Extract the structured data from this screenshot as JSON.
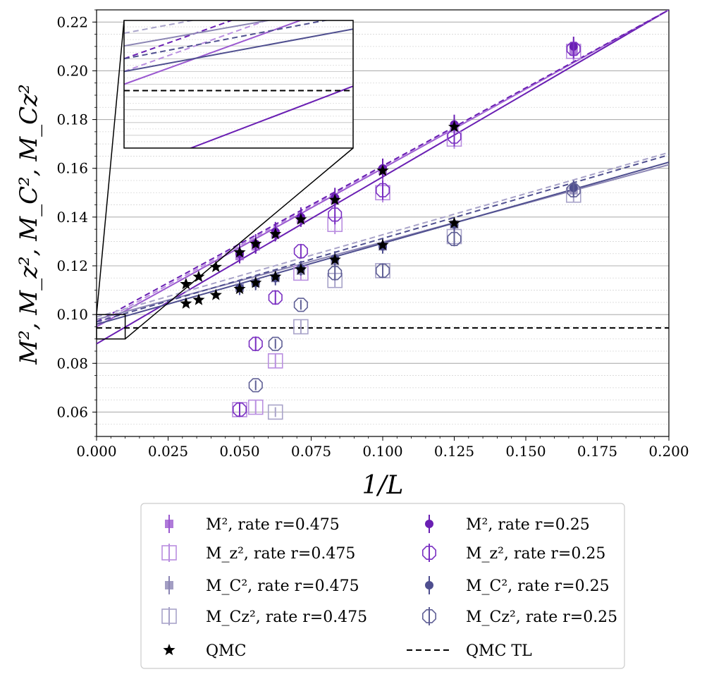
{
  "chart_data": {
    "type": "scatter",
    "xlabel": "1/L",
    "ylabel": "M², M_z², M_C², M_Cz²",
    "xlim": [
      0.0,
      0.2
    ],
    "ylim": [
      0.05,
      0.225
    ],
    "xticks": [
      "0.000",
      "0.025",
      "0.050",
      "0.075",
      "0.100",
      "0.125",
      "0.150",
      "0.175",
      "0.200"
    ],
    "yticks": [
      "0.06",
      "0.08",
      "0.10",
      "0.12",
      "0.14",
      "0.16",
      "0.18",
      "0.20",
      "0.22"
    ],
    "grid": "horizontal",
    "colors": {
      "m2_r475": "#9b59d0",
      "mz_r475": "#b98ee0",
      "mc_r475": "#8c86b4",
      "mcz_r475": "#a8a3c9",
      "m2_r25": "#6a1fb3",
      "mz_r25": "#7a2fc2",
      "mc_r25": "#4f4f8f",
      "mcz_r25": "#5f5f95",
      "qmc": "#000000"
    },
    "series": [
      {
        "key": "m2_r475",
        "name": "M², rate r=0.475",
        "marker": "filled-square",
        "points": [
          {
            "x": 0.05,
            "y": 0.124,
            "err": 0.003
          },
          {
            "x": 0.0556,
            "y": 0.128,
            "err": 0.003
          },
          {
            "x": 0.0625,
            "y": 0.133,
            "err": 0.003
          },
          {
            "x": 0.0714,
            "y": 0.139,
            "err": 0.003
          },
          {
            "x": 0.0833,
            "y": 0.147,
            "err": 0.003
          },
          {
            "x": 0.1,
            "y": 0.159,
            "err": 0.004
          },
          {
            "x": 0.125,
            "y": 0.177,
            "err": 0.004
          },
          {
            "x": 0.1667,
            "y": 0.208,
            "err": 0.004
          }
        ]
      },
      {
        "key": "mz_r475",
        "name": "M_z², rate r=0.475",
        "marker": "open-square",
        "points": [
          {
            "x": 0.05,
            "y": 0.061,
            "err": 0.003
          },
          {
            "x": 0.0556,
            "y": 0.062,
            "err": 0.003
          },
          {
            "x": 0.0625,
            "y": 0.081,
            "err": 0.003
          },
          {
            "x": 0.0714,
            "y": 0.117,
            "err": 0.003
          },
          {
            "x": 0.0833,
            "y": 0.137,
            "err": 0.004
          },
          {
            "x": 0.1,
            "y": 0.15,
            "err": 0.004
          },
          {
            "x": 0.125,
            "y": 0.172,
            "err": 0.004
          },
          {
            "x": 0.1667,
            "y": 0.208,
            "err": 0.004
          }
        ]
      },
      {
        "key": "mc_r475",
        "name": "M_C², rate r=0.475",
        "marker": "filled-square",
        "points": [
          {
            "x": 0.05,
            "y": 0.111,
            "err": 0.002
          },
          {
            "x": 0.0556,
            "y": 0.113,
            "err": 0.002
          },
          {
            "x": 0.0625,
            "y": 0.115,
            "err": 0.002
          },
          {
            "x": 0.0714,
            "y": 0.118,
            "err": 0.002
          },
          {
            "x": 0.0833,
            "y": 0.122,
            "err": 0.002
          },
          {
            "x": 0.1,
            "y": 0.128,
            "err": 0.002
          },
          {
            "x": 0.125,
            "y": 0.137,
            "err": 0.002
          },
          {
            "x": 0.1667,
            "y": 0.151,
            "err": 0.003
          }
        ]
      },
      {
        "key": "mcz_r475",
        "name": "M_Cz², rate r=0.475",
        "marker": "open-square",
        "points": [
          {
            "x": 0.0625,
            "y": 0.06,
            "err": 0.002
          },
          {
            "x": 0.0714,
            "y": 0.095,
            "err": 0.003
          },
          {
            "x": 0.0833,
            "y": 0.114,
            "err": 0.003
          },
          {
            "x": 0.1,
            "y": 0.118,
            "err": 0.003
          },
          {
            "x": 0.125,
            "y": 0.132,
            "err": 0.003
          },
          {
            "x": 0.1667,
            "y": 0.149,
            "err": 0.003
          }
        ]
      },
      {
        "key": "m2_r25",
        "name": "M², rate r=0.25",
        "marker": "filled-circle",
        "points": [
          {
            "x": 0.05,
            "y": 0.125,
            "err": 0.004
          },
          {
            "x": 0.0556,
            "y": 0.129,
            "err": 0.004
          },
          {
            "x": 0.0625,
            "y": 0.134,
            "err": 0.004
          },
          {
            "x": 0.0714,
            "y": 0.14,
            "err": 0.004
          },
          {
            "x": 0.0833,
            "y": 0.148,
            "err": 0.004
          },
          {
            "x": 0.1,
            "y": 0.16,
            "err": 0.004
          },
          {
            "x": 0.125,
            "y": 0.178,
            "err": 0.004
          },
          {
            "x": 0.1667,
            "y": 0.21,
            "err": 0.004
          }
        ]
      },
      {
        "key": "mz_r25",
        "name": "M_z², rate r=0.25",
        "marker": "open-octagon",
        "points": [
          {
            "x": 0.05,
            "y": 0.061,
            "err": 0.003
          },
          {
            "x": 0.0556,
            "y": 0.088,
            "err": 0.003
          },
          {
            "x": 0.0625,
            "y": 0.107,
            "err": 0.003
          },
          {
            "x": 0.0714,
            "y": 0.126,
            "err": 0.003
          },
          {
            "x": 0.0833,
            "y": 0.141,
            "err": 0.004
          },
          {
            "x": 0.1,
            "y": 0.151,
            "err": 0.004
          },
          {
            "x": 0.125,
            "y": 0.173,
            "err": 0.004
          },
          {
            "x": 0.1667,
            "y": 0.209,
            "err": 0.004
          }
        ]
      },
      {
        "key": "mc_r25",
        "name": "M_C², rate r=0.25",
        "marker": "filled-circle",
        "points": [
          {
            "x": 0.05,
            "y": 0.111,
            "err": 0.003
          },
          {
            "x": 0.0556,
            "y": 0.113,
            "err": 0.003
          },
          {
            "x": 0.0625,
            "y": 0.115,
            "err": 0.003
          },
          {
            "x": 0.0714,
            "y": 0.119,
            "err": 0.003
          },
          {
            "x": 0.0833,
            "y": 0.123,
            "err": 0.003
          },
          {
            "x": 0.1,
            "y": 0.128,
            "err": 0.003
          },
          {
            "x": 0.125,
            "y": 0.137,
            "err": 0.003
          },
          {
            "x": 0.1667,
            "y": 0.152,
            "err": 0.003
          }
        ]
      },
      {
        "key": "mcz_r25",
        "name": "M_Cz², rate r=0.25",
        "marker": "open-octagon",
        "points": [
          {
            "x": 0.0556,
            "y": 0.071,
            "err": 0.002
          },
          {
            "x": 0.0625,
            "y": 0.088,
            "err": 0.002
          },
          {
            "x": 0.0714,
            "y": 0.104,
            "err": 0.002
          },
          {
            "x": 0.0833,
            "y": 0.117,
            "err": 0.003
          },
          {
            "x": 0.1,
            "y": 0.118,
            "err": 0.003
          },
          {
            "x": 0.125,
            "y": 0.131,
            "err": 0.003
          },
          {
            "x": 0.1667,
            "y": 0.151,
            "err": 0.003
          }
        ]
      },
      {
        "key": "qmc",
        "name": "QMC",
        "marker": "star",
        "points": [
          {
            "x": 0.03125,
            "y": 0.1125
          },
          {
            "x": 0.0357,
            "y": 0.1155
          },
          {
            "x": 0.0417,
            "y": 0.1195
          },
          {
            "x": 0.05,
            "y": 0.1255
          },
          {
            "x": 0.0556,
            "y": 0.129
          },
          {
            "x": 0.0625,
            "y": 0.133
          },
          {
            "x": 0.0714,
            "y": 0.139
          },
          {
            "x": 0.0833,
            "y": 0.147
          },
          {
            "x": 0.1,
            "y": 0.159
          },
          {
            "x": 0.125,
            "y": 0.177
          },
          {
            "x": 0.03125,
            "y": 0.1045
          },
          {
            "x": 0.0357,
            "y": 0.106
          },
          {
            "x": 0.0417,
            "y": 0.108
          },
          {
            "x": 0.05,
            "y": 0.1105
          },
          {
            "x": 0.0556,
            "y": 0.113
          },
          {
            "x": 0.0625,
            "y": 0.1155
          },
          {
            "x": 0.0714,
            "y": 0.1185
          },
          {
            "x": 0.0833,
            "y": 0.1225
          },
          {
            "x": 0.1,
            "y": 0.1285
          },
          {
            "x": 0.125,
            "y": 0.1375
          }
        ]
      }
    ],
    "fits": [
      {
        "key": "m2_r475",
        "style": "solid",
        "x0": 0.0,
        "y0": 0.095,
        "x1": 0.2,
        "y1": 0.225
      },
      {
        "key": "m2_r25",
        "style": "solid",
        "x0": 0.0,
        "y0": 0.088,
        "x1": 0.2,
        "y1": 0.225
      },
      {
        "key": "mz_r475",
        "style": "dashed",
        "x0": 0.0,
        "y0": 0.096,
        "x1": 0.2,
        "y1": 0.225
      },
      {
        "key": "m2_r25",
        "style": "dashed",
        "x0": 0.0,
        "y0": 0.097,
        "x1": 0.2,
        "y1": 0.225
      },
      {
        "key": "mc_r475",
        "style": "solid",
        "x0": 0.0,
        "y0": 0.098,
        "x1": 0.2,
        "y1": 0.1615
      },
      {
        "key": "mc_r25",
        "style": "solid",
        "x0": 0.0,
        "y0": 0.096,
        "x1": 0.2,
        "y1": 0.1625
      },
      {
        "key": "mcz_r475",
        "style": "dashed",
        "x0": 0.0,
        "y0": 0.099,
        "x1": 0.2,
        "y1": 0.1665
      },
      {
        "key": "mc_r25",
        "style": "dashed",
        "x0": 0.0,
        "y0": 0.097,
        "x1": 0.2,
        "y1": 0.1655
      }
    ],
    "qmc_tl": {
      "name": "QMC TL",
      "style": "dashed",
      "y": 0.0945
    },
    "inset": {
      "xlim": [
        0.0,
        0.01
      ],
      "ylim": [
        0.09,
        0.1
      ]
    },
    "legend": {
      "placement": "below",
      "entries": [
        {
          "key": "m2_r475",
          "label": "M², rate r=0.475",
          "sup": "2",
          "sub": "",
          "rate": "0.475"
        },
        {
          "key": "mz_r475",
          "label": "M_z², rate r=0.475",
          "sup": "2",
          "sub": "z",
          "rate": "0.475"
        },
        {
          "key": "mc_r475",
          "label": "M_C², rate r=0.475",
          "sup": "2",
          "sub": "C",
          "rate": "0.475"
        },
        {
          "key": "mcz_r475",
          "label": "M_Cz², rate r=0.475",
          "sup": "2",
          "sub": "Cz",
          "rate": "0.475"
        },
        {
          "key": "qmc",
          "label": "QMC"
        },
        {
          "key": "m2_r25",
          "label": "M², rate r=0.25",
          "sup": "2",
          "sub": "",
          "rate": "0.25"
        },
        {
          "key": "mz_r25",
          "label": "M_z², rate r=0.25",
          "sup": "2",
          "sub": "z",
          "rate": "0.25"
        },
        {
          "key": "mc_r25",
          "label": "M_C², rate r=0.25",
          "sup": "2",
          "sub": "C",
          "rate": "0.25"
        },
        {
          "key": "mcz_r25",
          "label": "M_Cz², rate r=0.25",
          "sup": "2",
          "sub": "Cz",
          "rate": "0.25"
        },
        {
          "key": "qmc_tl",
          "label": "QMC TL"
        }
      ]
    }
  }
}
